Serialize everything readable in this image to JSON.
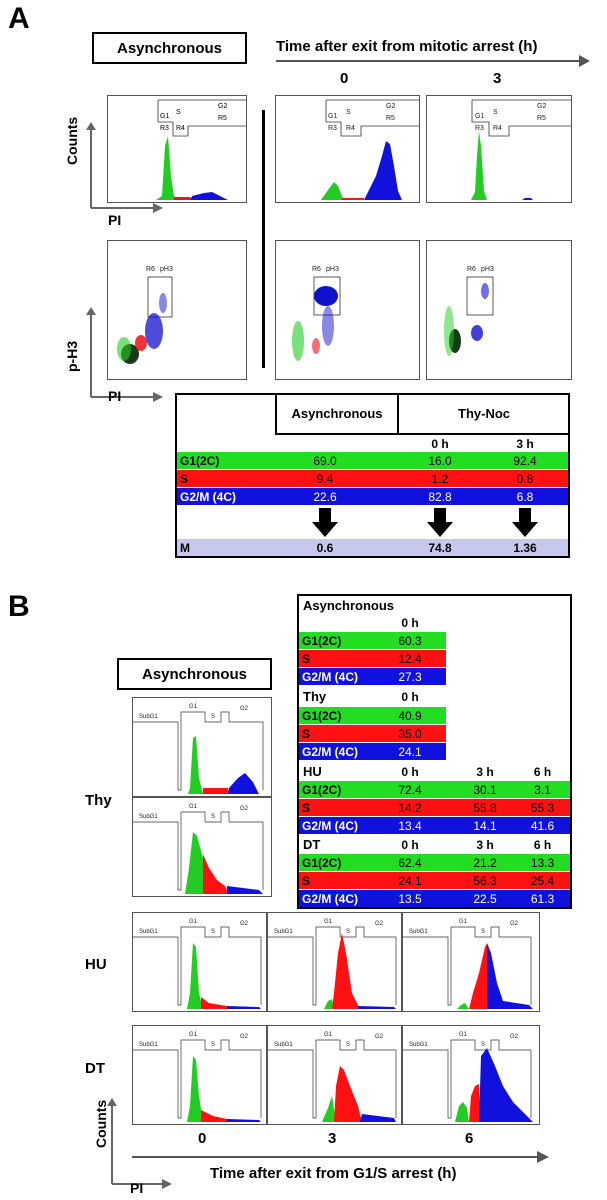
{
  "panel_a": {
    "letter": "A",
    "async_label": "Asynchronous",
    "time_header": "Time after exit from mitotic arrest (h)",
    "time_points": [
      "0",
      "3"
    ],
    "ylabel_counts": "Counts",
    "ylabel_ph3": "p-H3",
    "xlabel_pi": "PI",
    "hist_gates": [
      "G1",
      "R3",
      "S",
      "R4",
      "G2",
      "R5"
    ],
    "dot_gates": [
      "R6",
      "pH3"
    ],
    "table": {
      "header_async": "Asynchronous",
      "header_thynoc": "Thy-Noc",
      "sub_0h": "0 h",
      "sub_3h": "3 h",
      "rows": [
        {
          "label": "G1(2C)",
          "values": [
            "69.0",
            "16.0",
            "92.4"
          ],
          "color": "#22dd22"
        },
        {
          "label": "S",
          "values": [
            "9.4",
            "1.2",
            "0.8"
          ],
          "color": "#ff1111"
        },
        {
          "label": "G2/M (4C)",
          "values": [
            "22.6",
            "82.8",
            "6.8"
          ],
          "color": "#1111dd"
        }
      ],
      "m_row": {
        "label": "M",
        "values": [
          "0.6",
          "74.8",
          "1.36"
        ]
      }
    }
  },
  "panel_b": {
    "letter": "B",
    "async_label": "Asynchronous",
    "row_labels": [
      "Thy",
      "HU",
      "DT"
    ],
    "hist_gates": [
      "SubG1",
      "G1",
      "S",
      "G2"
    ],
    "time_points": [
      "0",
      "3",
      "6"
    ],
    "xlabel": "Time after exit from G1/S arrest (h)",
    "ylabel_counts": "Counts",
    "xlabel_pi": "PI",
    "table": {
      "async_title": "Asynchronous",
      "async_time": "0 h",
      "async_rows": [
        {
          "label": "G1(2C)",
          "values": [
            "60.3"
          ]
        },
        {
          "label": "S",
          "values": [
            "12.4"
          ]
        },
        {
          "label": "G2/M (4C)",
          "values": [
            "27.3"
          ]
        }
      ],
      "thy_title": "Thy",
      "thy_time": "0 h",
      "thy_rows": [
        {
          "label": "G1(2C)",
          "values": [
            "40.9"
          ]
        },
        {
          "label": "S",
          "values": [
            "35.0"
          ]
        },
        {
          "label": "G2/M (4C)",
          "values": [
            "24.1"
          ]
        }
      ],
      "hu_title": "HU",
      "hu_times": [
        "0 h",
        "3 h",
        "6 h"
      ],
      "hu_rows": [
        {
          "label": "G1(2C)",
          "values": [
            "72.4",
            "30.1",
            "3.1"
          ]
        },
        {
          "label": "S",
          "values": [
            "14.2",
            "55.8",
            "55.3"
          ]
        },
        {
          "label": "G2/M (4C)",
          "values": [
            "13.4",
            "14.1",
            "41.6"
          ]
        }
      ],
      "dt_title": "DT",
      "dt_times": [
        "0 h",
        "3 h",
        "6 h"
      ],
      "dt_rows": [
        {
          "label": "G1(2C)",
          "values": [
            "62.4",
            "21.2",
            "13.3"
          ]
        },
        {
          "label": "S",
          "values": [
            "24.1",
            "56.3",
            "25.4"
          ]
        },
        {
          "label": "G2/M (4C)",
          "values": [
            "13.5",
            "22.5",
            "61.3"
          ]
        }
      ]
    }
  }
}
